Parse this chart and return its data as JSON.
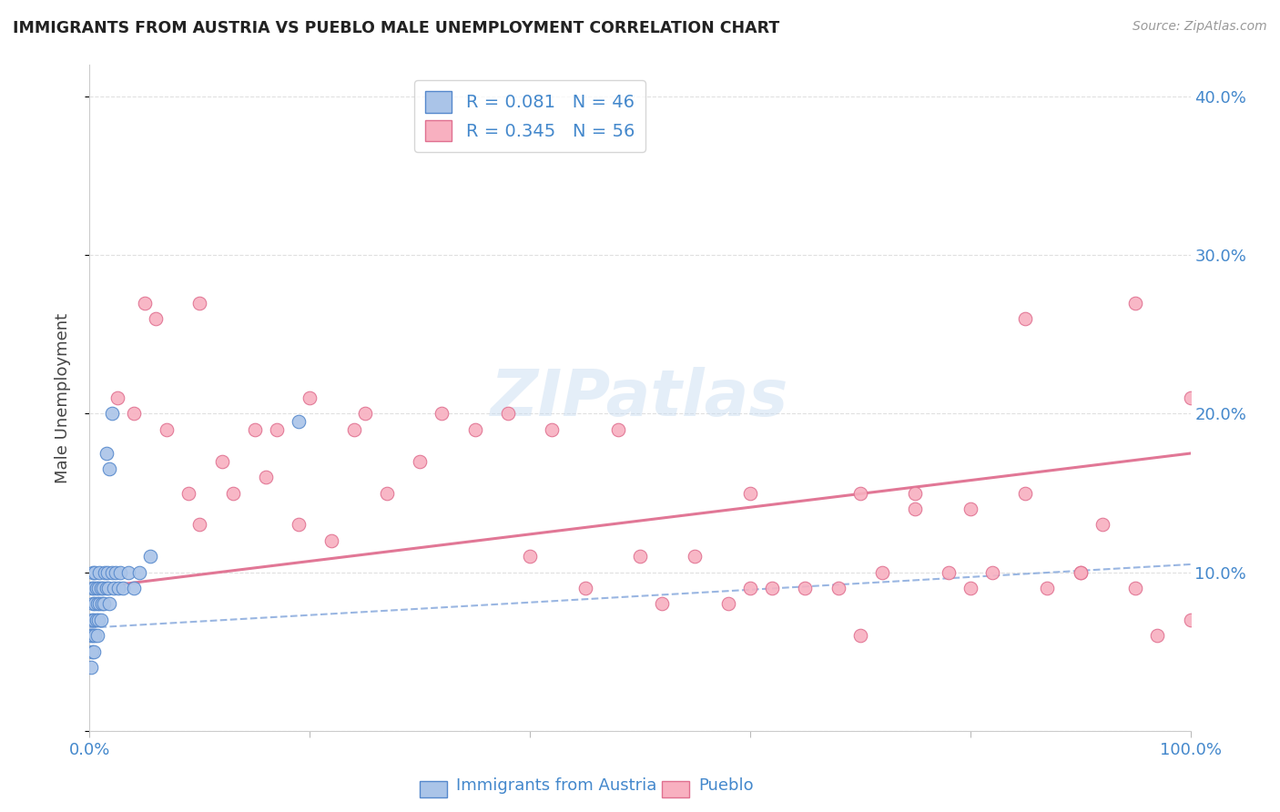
{
  "title": "IMMIGRANTS FROM AUSTRIA VS PUEBLO MALE UNEMPLOYMENT CORRELATION CHART",
  "source": "Source: ZipAtlas.com",
  "ylabel": "Male Unemployment",
  "legend_labels": [
    "Immigrants from Austria",
    "Pueblo"
  ],
  "austria_R": 0.081,
  "austria_N": 46,
  "pueblo_R": 0.345,
  "pueblo_N": 56,
  "austria_color": "#aac4e8",
  "austria_edge_color": "#5588cc",
  "pueblo_color": "#f8b0c0",
  "pueblo_edge_color": "#e07090",
  "austria_line_color": "#88aadd",
  "pueblo_line_color": "#e07090",
  "background_color": "#ffffff",
  "xlim": [
    0.0,
    1.0
  ],
  "ylim": [
    0.0,
    0.42
  ],
  "austria_x": [
    0.001,
    0.001,
    0.002,
    0.002,
    0.002,
    0.003,
    0.003,
    0.003,
    0.004,
    0.004,
    0.004,
    0.005,
    0.005,
    0.005,
    0.006,
    0.006,
    0.007,
    0.007,
    0.008,
    0.008,
    0.009,
    0.009,
    0.01,
    0.01,
    0.011,
    0.012,
    0.013,
    0.014,
    0.015,
    0.016,
    0.017,
    0.018,
    0.02,
    0.022,
    0.024,
    0.026,
    0.028,
    0.03,
    0.035,
    0.04,
    0.045,
    0.055,
    0.015,
    0.018,
    0.02,
    0.19
  ],
  "austria_y": [
    0.04,
    0.06,
    0.05,
    0.07,
    0.09,
    0.06,
    0.08,
    0.1,
    0.05,
    0.07,
    0.09,
    0.06,
    0.08,
    0.1,
    0.07,
    0.09,
    0.06,
    0.08,
    0.07,
    0.09,
    0.08,
    0.1,
    0.07,
    0.09,
    0.08,
    0.09,
    0.08,
    0.1,
    0.09,
    0.1,
    0.09,
    0.08,
    0.1,
    0.09,
    0.1,
    0.09,
    0.1,
    0.09,
    0.1,
    0.09,
    0.1,
    0.11,
    0.175,
    0.165,
    0.2,
    0.195
  ],
  "austria_trend_x": [
    0.0,
    1.0
  ],
  "austria_trend_y": [
    0.065,
    0.105
  ],
  "pueblo_x": [
    0.025,
    0.04,
    0.06,
    0.07,
    0.09,
    0.1,
    0.12,
    0.13,
    0.15,
    0.16,
    0.17,
    0.19,
    0.2,
    0.22,
    0.24,
    0.25,
    0.27,
    0.3,
    0.32,
    0.35,
    0.38,
    0.4,
    0.42,
    0.45,
    0.48,
    0.5,
    0.52,
    0.55,
    0.58,
    0.6,
    0.62,
    0.65,
    0.68,
    0.7,
    0.72,
    0.75,
    0.78,
    0.8,
    0.82,
    0.85,
    0.87,
    0.9,
    0.92,
    0.95,
    0.97,
    1.0,
    0.05,
    0.1,
    0.6,
    0.7,
    0.75,
    0.8,
    0.85,
    0.9,
    0.95,
    1.0
  ],
  "pueblo_y": [
    0.21,
    0.2,
    0.26,
    0.19,
    0.15,
    0.13,
    0.17,
    0.15,
    0.19,
    0.16,
    0.19,
    0.13,
    0.21,
    0.12,
    0.19,
    0.2,
    0.15,
    0.17,
    0.2,
    0.19,
    0.2,
    0.11,
    0.19,
    0.09,
    0.19,
    0.11,
    0.08,
    0.11,
    0.08,
    0.15,
    0.09,
    0.09,
    0.09,
    0.15,
    0.1,
    0.15,
    0.1,
    0.09,
    0.1,
    0.15,
    0.09,
    0.1,
    0.13,
    0.09,
    0.06,
    0.07,
    0.27,
    0.27,
    0.09,
    0.06,
    0.14,
    0.14,
    0.26,
    0.1,
    0.27,
    0.21
  ],
  "pueblo_trend_x": [
    0.0,
    1.0
  ],
  "pueblo_trend_y": [
    0.09,
    0.175
  ]
}
